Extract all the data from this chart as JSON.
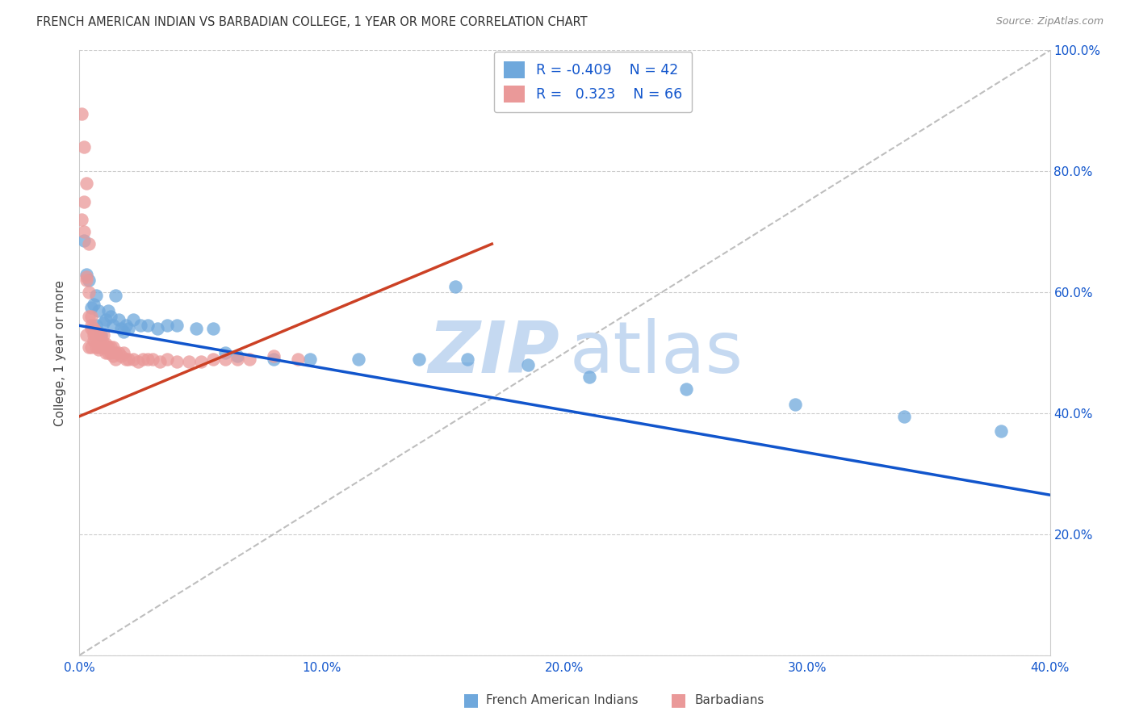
{
  "title": "FRENCH AMERICAN INDIAN VS BARBADIAN COLLEGE, 1 YEAR OR MORE CORRELATION CHART",
  "source": "Source: ZipAtlas.com",
  "ylabel": "College, 1 year or more",
  "xlim": [
    0.0,
    0.4
  ],
  "ylim": [
    0.0,
    1.0
  ],
  "xtick_vals": [
    0.0,
    0.1,
    0.2,
    0.3,
    0.4
  ],
  "xtick_labels": [
    "0.0%",
    "10.0%",
    "20.0%",
    "30.0%",
    "40.0%"
  ],
  "ytick_vals": [
    0.0,
    0.2,
    0.4,
    0.6,
    0.8,
    1.0
  ],
  "ytick_labels_right": [
    "",
    "20.0%",
    "40.0%",
    "60.0%",
    "80.0%",
    "100.0%"
  ],
  "legend_R_blue": "-0.409",
  "legend_N_blue": "42",
  "legend_R_pink": "0.323",
  "legend_N_pink": "66",
  "blue_color": "#6fa8dc",
  "pink_color": "#ea9999",
  "blue_line_color": "#1155cc",
  "pink_line_color": "#cc4125",
  "diag_line_color": "#b7b7b7",
  "watermark_zip_color": "#c5d9f1",
  "watermark_atlas_color": "#c5d9f1",
  "background_color": "#ffffff",
  "blue_scatter_x": [
    0.002,
    0.003,
    0.004,
    0.005,
    0.006,
    0.007,
    0.007,
    0.008,
    0.009,
    0.01,
    0.011,
    0.012,
    0.013,
    0.014,
    0.015,
    0.016,
    0.017,
    0.018,
    0.019,
    0.02,
    0.022,
    0.025,
    0.028,
    0.032,
    0.036,
    0.04,
    0.048,
    0.055,
    0.065,
    0.08,
    0.095,
    0.115,
    0.14,
    0.16,
    0.185,
    0.21,
    0.25,
    0.295,
    0.34,
    0.38,
    0.155,
    0.06
  ],
  "blue_scatter_y": [
    0.685,
    0.63,
    0.62,
    0.575,
    0.58,
    0.595,
    0.545,
    0.57,
    0.53,
    0.55,
    0.555,
    0.57,
    0.56,
    0.545,
    0.595,
    0.555,
    0.54,
    0.535,
    0.545,
    0.54,
    0.555,
    0.545,
    0.545,
    0.54,
    0.545,
    0.545,
    0.54,
    0.54,
    0.495,
    0.49,
    0.49,
    0.49,
    0.49,
    0.49,
    0.48,
    0.46,
    0.44,
    0.415,
    0.395,
    0.37,
    0.61,
    0.5
  ],
  "pink_scatter_x": [
    0.001,
    0.001,
    0.002,
    0.002,
    0.003,
    0.003,
    0.003,
    0.004,
    0.004,
    0.004,
    0.005,
    0.005,
    0.005,
    0.005,
    0.006,
    0.006,
    0.006,
    0.006,
    0.007,
    0.007,
    0.007,
    0.007,
    0.008,
    0.008,
    0.008,
    0.008,
    0.009,
    0.009,
    0.009,
    0.01,
    0.01,
    0.01,
    0.011,
    0.011,
    0.012,
    0.012,
    0.013,
    0.013,
    0.014,
    0.014,
    0.015,
    0.015,
    0.016,
    0.017,
    0.018,
    0.019,
    0.02,
    0.022,
    0.024,
    0.026,
    0.028,
    0.03,
    0.033,
    0.036,
    0.04,
    0.045,
    0.05,
    0.055,
    0.06,
    0.065,
    0.07,
    0.08,
    0.09,
    0.002,
    0.003,
    0.004
  ],
  "pink_scatter_y": [
    0.895,
    0.72,
    0.84,
    0.7,
    0.625,
    0.62,
    0.53,
    0.6,
    0.56,
    0.51,
    0.56,
    0.545,
    0.54,
    0.51,
    0.54,
    0.535,
    0.53,
    0.52,
    0.535,
    0.53,
    0.525,
    0.51,
    0.53,
    0.52,
    0.51,
    0.505,
    0.525,
    0.515,
    0.51,
    0.53,
    0.515,
    0.51,
    0.515,
    0.5,
    0.51,
    0.5,
    0.51,
    0.5,
    0.51,
    0.495,
    0.5,
    0.49,
    0.5,
    0.495,
    0.5,
    0.49,
    0.49,
    0.49,
    0.485,
    0.49,
    0.49,
    0.49,
    0.485,
    0.49,
    0.485,
    0.485,
    0.485,
    0.49,
    0.49,
    0.49,
    0.49,
    0.495,
    0.49,
    0.75,
    0.78,
    0.68
  ],
  "blue_trend_x0": 0.0,
  "blue_trend_y0": 0.545,
  "blue_trend_x1": 0.4,
  "blue_trend_y1": 0.265,
  "pink_trend_x0": 0.0,
  "pink_trend_y0": 0.395,
  "pink_trend_x1": 0.17,
  "pink_trend_y1": 0.68
}
